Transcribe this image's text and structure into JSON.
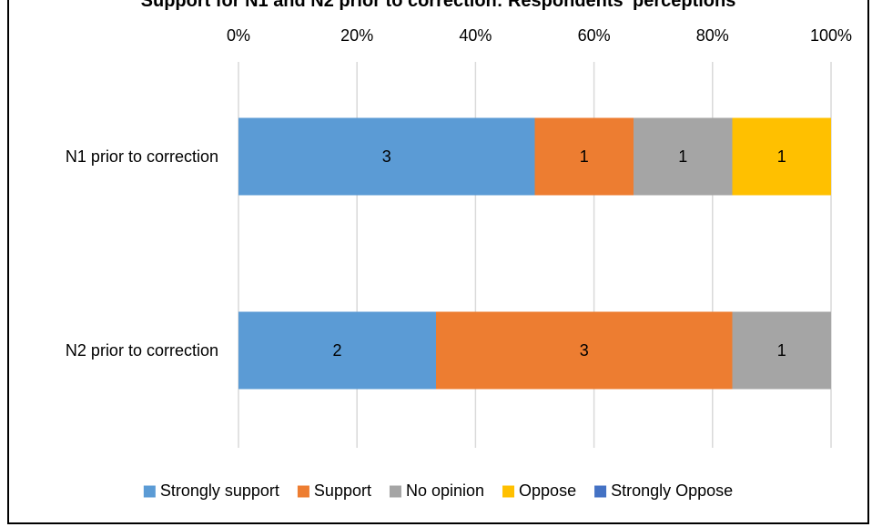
{
  "chart_data": {
    "type": "bar",
    "orientation": "horizontal",
    "stacking": "percent",
    "title": "Support for N1 and N2 prior to correction: Respondents' perceptions",
    "categories": [
      "N1 prior to correction",
      "N2 prior to correction"
    ],
    "series": [
      {
        "name": "Strongly support",
        "color": "#5B9BD5",
        "values": [
          3,
          2
        ]
      },
      {
        "name": "Support",
        "color": "#ED7D31",
        "values": [
          1,
          3
        ]
      },
      {
        "name": "No opinion",
        "color": "#A5A5A5",
        "values": [
          1,
          1
        ]
      },
      {
        "name": "Oppose",
        "color": "#FFC000",
        "values": [
          1,
          0
        ]
      },
      {
        "name": "Strongly Oppose",
        "color": "#4472C4",
        "values": [
          0,
          0
        ]
      }
    ],
    "x_ticks": [
      "0%",
      "20%",
      "40%",
      "60%",
      "80%",
      "100%"
    ],
    "xlim": [
      0,
      100
    ],
    "x_axis_position": "top",
    "grid": true,
    "legend_position": "bottom",
    "data_labels": true
  },
  "colors": {
    "gridline": "#D9D9D9",
    "label_text": "#000000",
    "frame": "#000000"
  }
}
